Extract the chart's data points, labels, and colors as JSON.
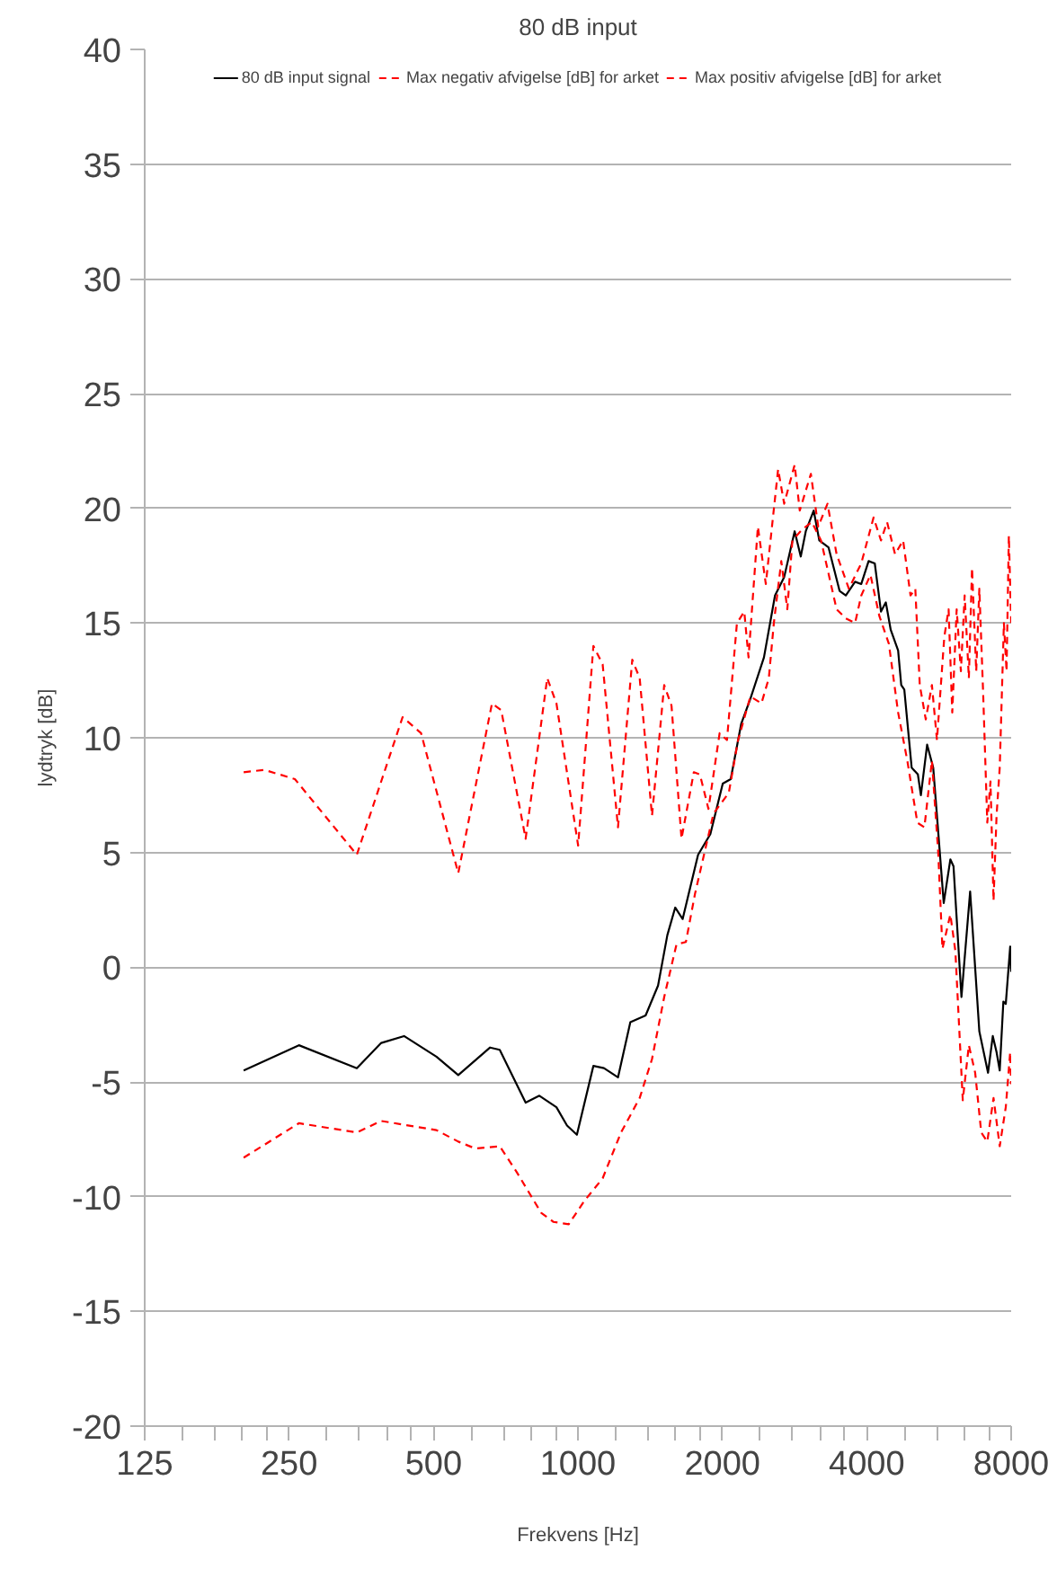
{
  "chart_data": {
    "type": "line",
    "title": "80 dB input",
    "xlabel": "Frekvens [Hz]",
    "ylabel": "lydtryk [dB]",
    "log": "x",
    "grid": "y",
    "legend": "top",
    "xlim": [
      125,
      8000
    ],
    "xticks": [
      125,
      {
        "value": 150,
        "label": null
      },
      {
        "value": 175,
        "label": null
      },
      {
        "value": 200,
        "label": null
      },
      {
        "value": 225,
        "label": null
      },
      250,
      {
        "value": 300,
        "label": null
      },
      {
        "value": 350,
        "label": null
      },
      {
        "value": 400,
        "label": null
      },
      {
        "value": 450,
        "label": null
      },
      500,
      {
        "value": 600,
        "label": null
      },
      {
        "value": 700,
        "label": null
      },
      {
        "value": 800,
        "label": null
      },
      {
        "value": 900,
        "label": null
      },
      1000,
      {
        "value": 1200,
        "label": null
      },
      {
        "value": 1400,
        "label": null
      },
      {
        "value": 1600,
        "label": null
      },
      {
        "value": 1800,
        "label": null
      },
      2000,
      {
        "value": 2400,
        "label": null
      },
      {
        "value": 2800,
        "label": null
      },
      {
        "value": 3200,
        "label": null
      },
      {
        "value": 3600,
        "label": null
      },
      4000,
      {
        "value": 4800,
        "label": null
      },
      {
        "value": 5600,
        "label": null
      },
      {
        "value": 6400,
        "label": null
      },
      {
        "value": 7200,
        "label": null
      },
      8000
    ],
    "ylim": [
      -20,
      40
    ],
    "yticks": [
      -20,
      -15,
      -10,
      -5,
      0,
      5,
      10,
      15,
      20,
      25,
      30,
      35,
      40
    ],
    "series": [
      {
        "name": "80 dB input signal",
        "color": "#000000",
        "line_style": "solid",
        "x": [
          201,
          262,
          346,
          389,
          434,
          507,
          563,
          656,
          687,
          778,
          831,
          902,
          949,
          995,
          1077,
          1133,
          1212,
          1286,
          1384,
          1469,
          1536,
          1595,
          1653,
          1780,
          1888,
          2004,
          2082,
          2189,
          2288,
          2442,
          2575,
          2691,
          2830,
          2914,
          2985,
          3101,
          3185,
          3329,
          3511,
          3618,
          3782,
          3896,
          4036,
          4157,
          4283,
          4384,
          4488,
          4650,
          4720,
          4790,
          4962,
          5113,
          5187,
          5345,
          5503,
          5788,
          5975,
          6066,
          6302,
          6570,
          6867,
          7159,
          7325,
          7458,
          7573,
          7706,
          7796,
          7963,
          8000
        ],
        "values": [
          -4.5,
          -3.4,
          -4.4,
          -3.3,
          -3.0,
          -3.9,
          -4.7,
          -3.5,
          -3.6,
          -5.9,
          -5.6,
          -6.1,
          -6.9,
          -7.3,
          -4.3,
          -4.4,
          -4.8,
          -2.4,
          -2.1,
          -0.8,
          1.4,
          2.6,
          2.1,
          4.9,
          5.8,
          8.0,
          8.2,
          10.6,
          11.7,
          13.5,
          16.2,
          17.0,
          19.0,
          17.9,
          19.0,
          19.9,
          18.6,
          18.3,
          16.4,
          16.2,
          16.8,
          16.7,
          17.7,
          17.6,
          15.5,
          15.9,
          14.7,
          13.8,
          12.3,
          12.1,
          8.7,
          8.4,
          7.5,
          9.7,
          8.7,
          2.8,
          4.7,
          4.4,
          -1.3,
          3.3,
          -2.8,
          -4.6,
          -3.0,
          -3.7,
          -4.5,
          -1.5,
          -1.6,
          0.9,
          -0.2
        ]
      },
      {
        "name": "Max negativ afvigelse [dB] for arket",
        "color": "#ff0000",
        "line_style": "dashed",
        "x": [
          201,
          262,
          346,
          389,
          507,
          563,
          611,
          687,
          744,
          838,
          889,
          957,
          1030,
          1126,
          1230,
          1345,
          1427,
          1513,
          1605,
          1679,
          1754,
          1917,
          2063,
          2157,
          2288,
          2413,
          2500,
          2561,
          2654,
          2732,
          2799,
          2941,
          3074,
          3212,
          3461,
          3618,
          3782,
          3896,
          4072,
          4250,
          4448,
          4650,
          4860,
          5100,
          5275,
          5469,
          5637,
          5752,
          5975,
          6121,
          6342,
          6530,
          6731,
          6930,
          7134,
          7351,
          7573,
          7796,
          7963,
          8000
        ],
        "values": [
          -8.3,
          -6.8,
          -7.2,
          -6.7,
          -7.1,
          -7.6,
          -7.9,
          -7.8,
          -8.9,
          -10.7,
          -11.1,
          -11.2,
          -10.2,
          -9.2,
          -7.2,
          -5.7,
          -4.0,
          -1.3,
          1.0,
          1.1,
          3.2,
          6.7,
          7.6,
          9.9,
          11.8,
          11.5,
          12.6,
          15.0,
          17.7,
          15.6,
          18.6,
          19.1,
          19.4,
          18.6,
          15.6,
          15.2,
          15.0,
          16.2,
          17.1,
          15.3,
          14.1,
          11.1,
          9.0,
          6.3,
          6.1,
          9.0,
          5.0,
          0.8,
          2.3,
          0.7,
          -5.8,
          -3.4,
          -4.6,
          -7.2,
          -7.6,
          -5.7,
          -7.8,
          -6.1,
          -3.7,
          -5.1
        ]
      },
      {
        "name": "Max positiv afvigelse [dB] for arket",
        "color": "#ff0000",
        "line_style": "dashed",
        "x": [
          201,
          222,
          257,
          346,
          431,
          471,
          563,
          662,
          692,
          778,
          863,
          902,
          1001,
          1077,
          1126,
          1212,
          1298,
          1345,
          1427,
          1513,
          1567,
          1644,
          1744,
          1796,
          1871,
          1974,
          2045,
          2145,
          2222,
          2268,
          2372,
          2464,
          2614,
          2691,
          2830,
          2900,
          3059,
          3169,
          3313,
          3461,
          3671,
          3896,
          4133,
          4283,
          4410,
          4582,
          4763,
          4935,
          5050,
          5159,
          5310,
          5469,
          5603,
          5804,
          5925,
          6030,
          6159,
          6285,
          6400,
          6530,
          6630,
          6765,
          6867,
          6992,
          7134,
          7244,
          7351,
          7458,
          7573,
          7726,
          7825,
          7912,
          8000
        ],
        "values": [
          8.5,
          8.6,
          8.2,
          4.9,
          10.9,
          10.2,
          4.1,
          11.5,
          11.2,
          5.6,
          12.6,
          11.5,
          5.3,
          14.0,
          13.2,
          6.1,
          13.4,
          12.6,
          6.6,
          12.3,
          11.4,
          5.6,
          8.5,
          8.4,
          6.9,
          10.2,
          9.9,
          15.0,
          15.5,
          13.5,
          19.2,
          16.7,
          21.7,
          20.2,
          21.9,
          19.9,
          21.5,
          19.2,
          20.2,
          18.0,
          16.5,
          17.6,
          19.6,
          18.6,
          19.4,
          18.0,
          18.6,
          16.2,
          16.5,
          12.3,
          10.8,
          12.3,
          9.9,
          14.4,
          15.6,
          11.1,
          15.6,
          12.9,
          16.2,
          12.6,
          17.4,
          12.9,
          16.5,
          12.0,
          6.3,
          8.1,
          2.9,
          6.6,
          8.7,
          15.0,
          12.9,
          18.8,
          15.0
        ]
      }
    ]
  }
}
